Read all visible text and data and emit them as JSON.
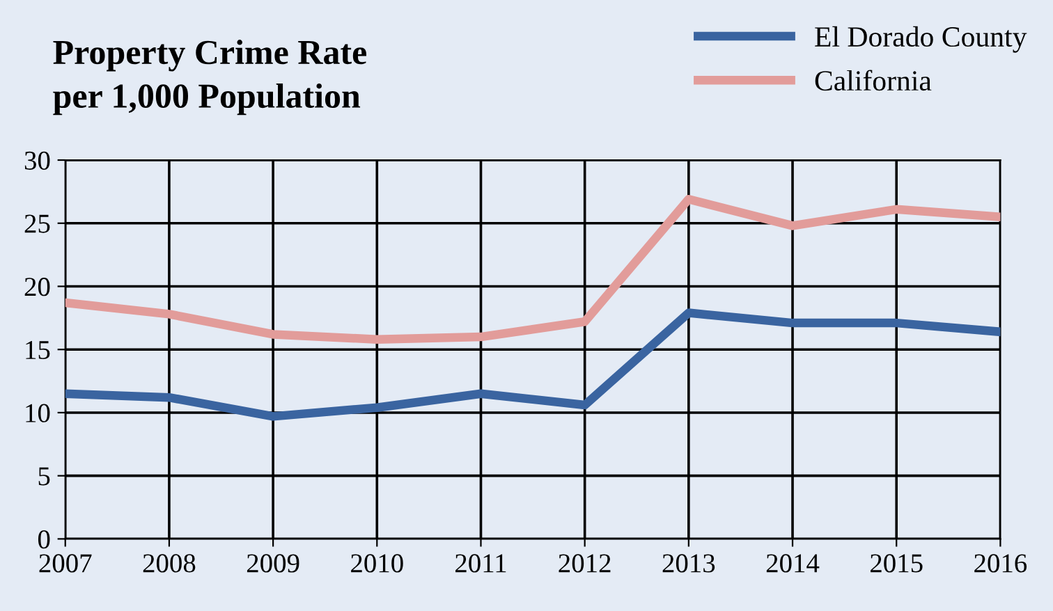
{
  "chart_data": {
    "type": "line",
    "title": "Property Crime Rate\nper 1,000 Population",
    "x": [
      2007,
      2008,
      2009,
      2010,
      2011,
      2012,
      2013,
      2014,
      2015,
      2016
    ],
    "series": [
      {
        "name": "El Dorado County",
        "color": "#3a64a0",
        "values": [
          11.5,
          11.2,
          9.7,
          10.4,
          11.5,
          10.6,
          17.9,
          17.1,
          17.1,
          16.4
        ]
      },
      {
        "name": "California",
        "color": "#e29c9a",
        "values": [
          18.7,
          17.8,
          16.2,
          15.8,
          16.0,
          17.2,
          26.9,
          24.8,
          26.1,
          25.5
        ]
      }
    ],
    "xlim": [
      2007,
      2016
    ],
    "xticks": [
      2007,
      2008,
      2009,
      2010,
      2011,
      2012,
      2013,
      2014,
      2015,
      2016
    ],
    "ylim": [
      0,
      30
    ],
    "yticks": [
      0,
      5,
      10,
      15,
      20,
      25,
      30
    ],
    "grid": true,
    "legend": "top right",
    "marker": "none",
    "line_style": "solid"
  }
}
